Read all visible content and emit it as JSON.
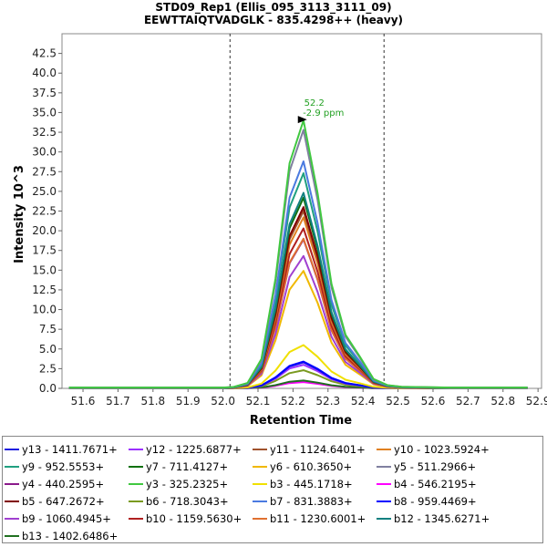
{
  "header": {
    "title_line1": "STD09_Rep1 (Ellis_095_3113_3111_09)",
    "title_line2": "EEWTTAIQTVADGLK - 835.4298++ (heavy)"
  },
  "chart_data": {
    "type": "line",
    "xlabel": "Retention Time",
    "ylabel": "Intensity 10^3",
    "xlim": [
      51.54,
      52.91
    ],
    "ylim": [
      0,
      45
    ],
    "x_ticks": [
      "51.6",
      "51.7",
      "51.8",
      "51.9",
      "52.0",
      "52.1",
      "52.2",
      "52.3",
      "52.4",
      "52.5",
      "52.6",
      "52.7",
      "52.8",
      "52.9"
    ],
    "y_ticks": [
      "0.0",
      "2.5",
      "5.0",
      "7.5",
      "10.0",
      "12.5",
      "15.0",
      "17.5",
      "20.0",
      "22.5",
      "25.0",
      "27.5",
      "30.0",
      "32.5",
      "35.0",
      "37.5",
      "40.0",
      "42.5"
    ],
    "boundaries": [
      52.02,
      52.46
    ],
    "peak_annotation": {
      "rt": "52.2",
      "ppm": "-2.9 ppm",
      "x": 52.24,
      "y": 34.0
    },
    "x": [
      51.56,
      51.6,
      51.65,
      51.7,
      51.75,
      51.8,
      51.85,
      51.9,
      51.95,
      52.0,
      52.03,
      52.07,
      52.11,
      52.15,
      52.19,
      52.23,
      52.27,
      52.31,
      52.35,
      52.39,
      52.43,
      52.47,
      52.51,
      52.55,
      52.6,
      52.65,
      52.7,
      52.75,
      52.8,
      52.85,
      52.87
    ],
    "series": [
      {
        "name": "y13 - 1411.7671+",
        "color": "#1e1ee0",
        "peak": 3.3
      },
      {
        "name": "y12 - 1225.6877+",
        "color": "#9b30ff",
        "peak": 3.0
      },
      {
        "name": "y11 - 1124.6401+",
        "color": "#a0522d",
        "peak": 22.5
      },
      {
        "name": "y10 - 1023.5924+",
        "color": "#e08020",
        "peak": 21.7
      },
      {
        "name": "y9 - 952.5553+",
        "color": "#20a080",
        "peak": 27.3
      },
      {
        "name": "y7 - 711.4127+",
        "color": "#107010",
        "peak": 24.2
      },
      {
        "name": "y6 - 610.3650+",
        "color": "#f0b800",
        "peak": 14.9
      },
      {
        "name": "y5 - 511.2966+",
        "color": "#8080a0",
        "peak": 32.8
      },
      {
        "name": "y4 - 440.2595+",
        "color": "#8b1a8b",
        "peak": 18.9
      },
      {
        "name": "y3 - 325.2325+",
        "color": "#40c840",
        "peak": 34.0
      },
      {
        "name": "b3 - 445.1718+",
        "color": "#f0e000",
        "peak": 5.5
      },
      {
        "name": "b4 - 546.2195+",
        "color": "#ff00ff",
        "peak": 0.8
      },
      {
        "name": "b5 - 647.2672+",
        "color": "#800000",
        "peak": 23.0
      },
      {
        "name": "b6 - 718.3043+",
        "color": "#7a9a20",
        "peak": 2.3
      },
      {
        "name": "b7 - 831.3883+",
        "color": "#4a7ae0",
        "peak": 28.8
      },
      {
        "name": "b8 - 959.4469+",
        "color": "#0000ff",
        "peak": 3.4
      },
      {
        "name": "b9 - 1060.4945+",
        "color": "#a040d0",
        "peak": 16.8
      },
      {
        "name": "b10 - 1159.5630+",
        "color": "#b02020",
        "peak": 20.3
      },
      {
        "name": "b11 - 1230.6001+",
        "color": "#e07030",
        "peak": 19.0
      },
      {
        "name": "b12 - 1345.6271+",
        "color": "#108080",
        "peak": 24.8
      },
      {
        "name": "b13 - 1402.6486+",
        "color": "#207020",
        "peak": 1.0
      }
    ],
    "peak_shape": [
      0.003,
      0.003,
      0.003,
      0.003,
      0.003,
      0.003,
      0.003,
      0.003,
      0.003,
      0.003,
      0.005,
      0.02,
      0.11,
      0.41,
      0.84,
      1.0,
      0.73,
      0.39,
      0.2,
      0.12,
      0.035,
      0.012,
      0.006,
      0.005,
      0.004,
      0.003,
      0.003,
      0.003,
      0.003,
      0.003,
      0.003
    ],
    "grid": false,
    "legend": "bottom"
  }
}
